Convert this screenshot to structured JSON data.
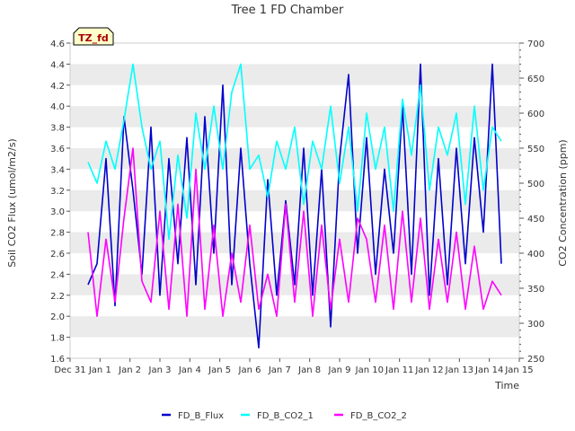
{
  "chart_data": {
    "type": "line",
    "title": "Tree 1 FD Chamber",
    "xlabel": "Time",
    "ylabel": "Soil CO2 Flux (umol/m2/s)",
    "y2label": "CO2 Concentration (ppm)",
    "badge": "TZ_fd",
    "x_ticks": [
      "Dec 31",
      "Jan 1",
      "Jan 2",
      "Jan 3",
      "Jan 4",
      "Jan 5",
      "Jan 6",
      "Jan 7",
      "Jan 8",
      "Jan 9",
      "Jan 10",
      "Jan 11",
      "Jan 12",
      "Jan 13",
      "Jan 14",
      "Jan 15"
    ],
    "xlim": [
      0,
      15
    ],
    "ylim": [
      1.6,
      4.6
    ],
    "y_ticks": [
      "1.6",
      "1.8",
      "2.0",
      "2.2",
      "2.4",
      "2.6",
      "2.8",
      "3.0",
      "3.2",
      "3.4",
      "3.6",
      "3.8",
      "4.0",
      "4.2",
      "4.4",
      "4.6"
    ],
    "y2lim": [
      250,
      700
    ],
    "y2_ticks": [
      "250",
      "300",
      "350",
      "400",
      "450",
      "500",
      "550",
      "600",
      "650",
      "700"
    ],
    "legend_position": "bottom-center",
    "colors": {
      "grid_band": "#ebebeb",
      "badge_fill": "#ffffcc",
      "badge_text": "#aa0000"
    },
    "series": [
      {
        "name": "FD_B_Flux",
        "axis": "left",
        "color": "#0000cc",
        "x": [
          0.6,
          0.9,
          1.2,
          1.5,
          1.8,
          2.1,
          2.4,
          2.7,
          3.0,
          3.3,
          3.6,
          3.9,
          4.2,
          4.5,
          4.8,
          5.1,
          5.4,
          5.7,
          6.0,
          6.3,
          6.6,
          6.9,
          7.2,
          7.5,
          7.8,
          8.1,
          8.4,
          8.7,
          9.0,
          9.3,
          9.6,
          9.9,
          10.2,
          10.5,
          10.8,
          11.1,
          11.4,
          11.7,
          12.0,
          12.3,
          12.6,
          12.9,
          13.2,
          13.5,
          13.8,
          14.1,
          14.4
        ],
        "y": [
          2.3,
          2.5,
          3.5,
          2.1,
          3.9,
          3.2,
          2.4,
          3.8,
          2.2,
          3.5,
          2.5,
          3.7,
          2.3,
          3.9,
          2.6,
          4.2,
          2.3,
          3.6,
          2.5,
          1.7,
          3.3,
          2.2,
          3.1,
          2.3,
          3.6,
          2.2,
          3.4,
          1.9,
          3.5,
          4.3,
          2.6,
          3.7,
          2.4,
          3.4,
          2.6,
          4.0,
          2.4,
          4.4,
          2.2,
          3.5,
          2.3,
          3.6,
          2.5,
          3.7,
          2.8,
          4.4,
          2.5
        ]
      },
      {
        "name": "FD_B_CO2_1",
        "axis": "right",
        "color": "#00ffff",
        "x": [
          0.6,
          0.9,
          1.2,
          1.5,
          1.8,
          2.1,
          2.4,
          2.7,
          3.0,
          3.3,
          3.6,
          3.9,
          4.2,
          4.5,
          4.8,
          5.1,
          5.4,
          5.7,
          6.0,
          6.3,
          6.6,
          6.9,
          7.2,
          7.5,
          7.8,
          8.1,
          8.4,
          8.7,
          9.0,
          9.3,
          9.6,
          9.9,
          10.2,
          10.5,
          10.8,
          11.1,
          11.4,
          11.7,
          12.0,
          12.3,
          12.6,
          12.9,
          13.2,
          13.5,
          13.8,
          14.1,
          14.4
        ],
        "y": [
          530,
          500,
          560,
          520,
          590,
          670,
          580,
          520,
          560,
          420,
          540,
          450,
          600,
          520,
          610,
          520,
          630,
          670,
          520,
          540,
          480,
          560,
          520,
          580,
          470,
          560,
          520,
          610,
          500,
          580,
          460,
          600,
          520,
          580,
          460,
          620,
          540,
          640,
          490,
          580,
          540,
          600,
          470,
          610,
          490,
          580,
          560
        ]
      },
      {
        "name": "FD_B_CO2_2",
        "axis": "right",
        "color": "#ff00ff",
        "x": [
          0.6,
          0.9,
          1.2,
          1.5,
          1.8,
          2.1,
          2.4,
          2.7,
          3.0,
          3.3,
          3.6,
          3.9,
          4.2,
          4.5,
          4.8,
          5.1,
          5.4,
          5.7,
          6.0,
          6.3,
          6.6,
          6.9,
          7.2,
          7.5,
          7.8,
          8.1,
          8.4,
          8.7,
          9.0,
          9.3,
          9.6,
          9.9,
          10.2,
          10.5,
          10.8,
          11.1,
          11.4,
          11.7,
          12.0,
          12.3,
          12.6,
          12.9,
          13.2,
          13.5,
          13.8,
          14.1,
          14.4
        ],
        "y": [
          430,
          310,
          420,
          330,
          450,
          550,
          360,
          330,
          460,
          320,
          470,
          310,
          520,
          320,
          440,
          310,
          400,
          330,
          440,
          320,
          370,
          310,
          470,
          330,
          460,
          310,
          440,
          320,
          420,
          330,
          450,
          420,
          330,
          440,
          320,
          460,
          330,
          450,
          320,
          420,
          330,
          430,
          320,
          410,
          320,
          360,
          340
        ]
      }
    ]
  }
}
